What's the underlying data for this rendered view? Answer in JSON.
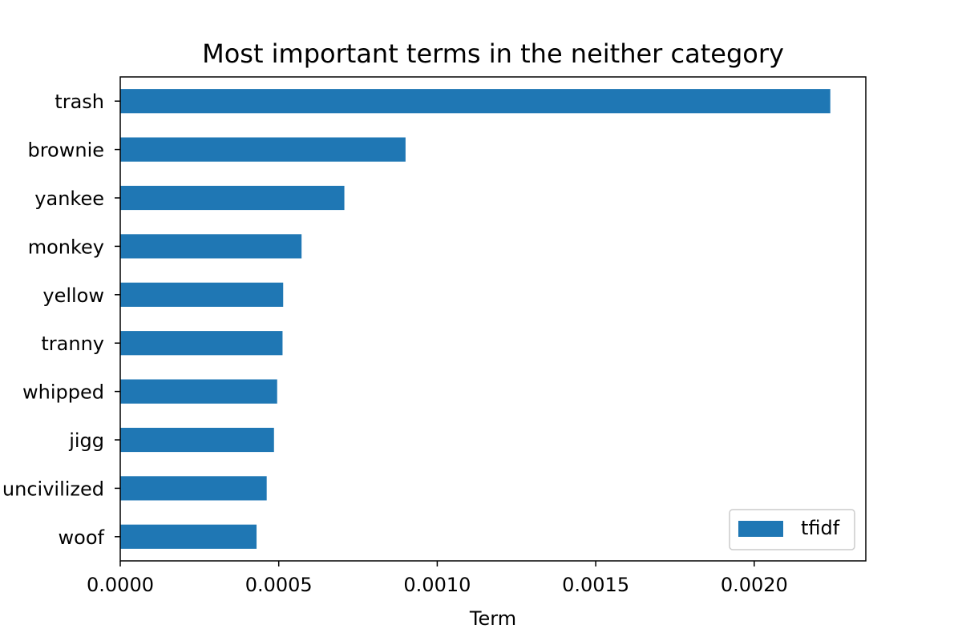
{
  "chart_data": {
    "type": "bar",
    "orientation": "horizontal",
    "title": "Most important terms in the neither category",
    "xlabel": "Term",
    "ylabel": "",
    "categories": [
      "trash",
      "brownie",
      "yankee",
      "monkey",
      "yellow",
      "tranny",
      "whipped",
      "jigg",
      "uncivilized",
      "woof"
    ],
    "series": [
      {
        "name": "tfidf",
        "values": [
          0.00224,
          0.0009,
          0.000707,
          0.000572,
          0.000514,
          0.000512,
          0.000495,
          0.000485,
          0.000462,
          0.00043
        ],
        "color": "#1f77b4"
      }
    ],
    "xlim": [
      0,
      0.002352
    ],
    "x_ticks": [
      0,
      0.0005,
      0.001,
      0.0015,
      0.002
    ],
    "x_tick_labels": [
      "0.0000",
      "0.0005",
      "0.0010",
      "0.0015",
      "0.0020"
    ],
    "grid": false,
    "legend": "lower right"
  }
}
